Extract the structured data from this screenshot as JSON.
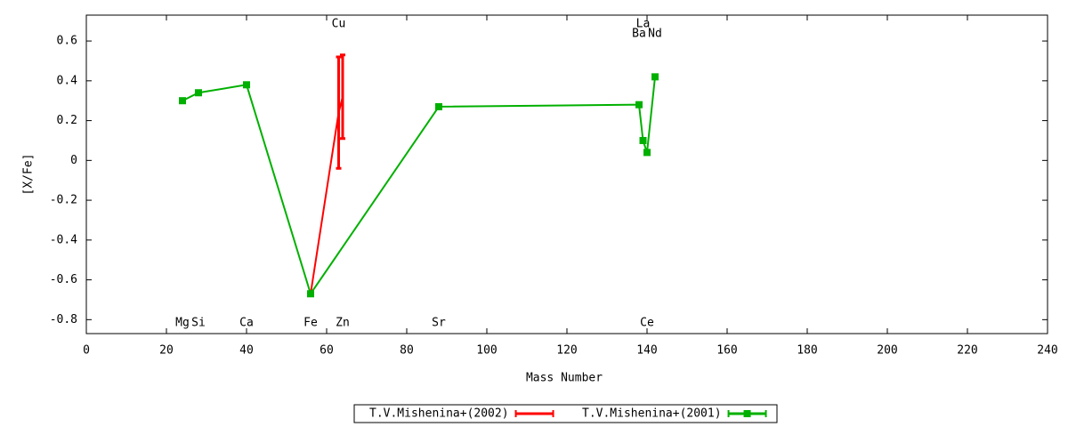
{
  "chart_data": {
    "type": "line",
    "xlabel": "Mass Number",
    "ylabel": "[X/Fe]",
    "xlim": [
      0,
      240
    ],
    "ylim": [
      -0.87,
      0.73
    ],
    "xticks": [
      0,
      20,
      40,
      60,
      80,
      100,
      120,
      140,
      160,
      180,
      200,
      220,
      240
    ],
    "yticks": [
      -0.8,
      -0.6,
      -0.4,
      -0.2,
      0,
      0.2,
      0.4,
      0.6
    ],
    "legend": "bottom",
    "series": [
      {
        "name": "T.V.Mishenina+(2002)",
        "color": "#ff0000",
        "x": [
          56,
          63,
          64
        ],
        "values": [
          -0.67,
          0.24,
          0.32
        ],
        "errors": [
          0.01,
          0.28,
          0.21
        ]
      },
      {
        "name": "T.V.Mishenina+(2001)",
        "color": "#00b000",
        "x": [
          24,
          28,
          40,
          56,
          88,
          138,
          139,
          140,
          142
        ],
        "values": [
          0.3,
          0.34,
          0.38,
          -0.67,
          0.27,
          0.28,
          0.1,
          0.04,
          0.42
        ]
      }
    ],
    "annotations_bottom": [
      {
        "text": "Mg",
        "x": 24
      },
      {
        "text": "Si",
        "x": 28
      },
      {
        "text": "Ca",
        "x": 40
      },
      {
        "text": "Fe",
        "x": 56
      },
      {
        "text": "Zn",
        "x": 64
      },
      {
        "text": "Sr",
        "x": 88
      },
      {
        "text": "Ce",
        "x": 140
      }
    ],
    "annotations_top": [
      {
        "text": "Cu",
        "x": 63
      },
      {
        "text": "La",
        "x": 139
      },
      {
        "text": "Ba",
        "x": 138
      },
      {
        "text": "Nd",
        "x": 142
      }
    ]
  }
}
